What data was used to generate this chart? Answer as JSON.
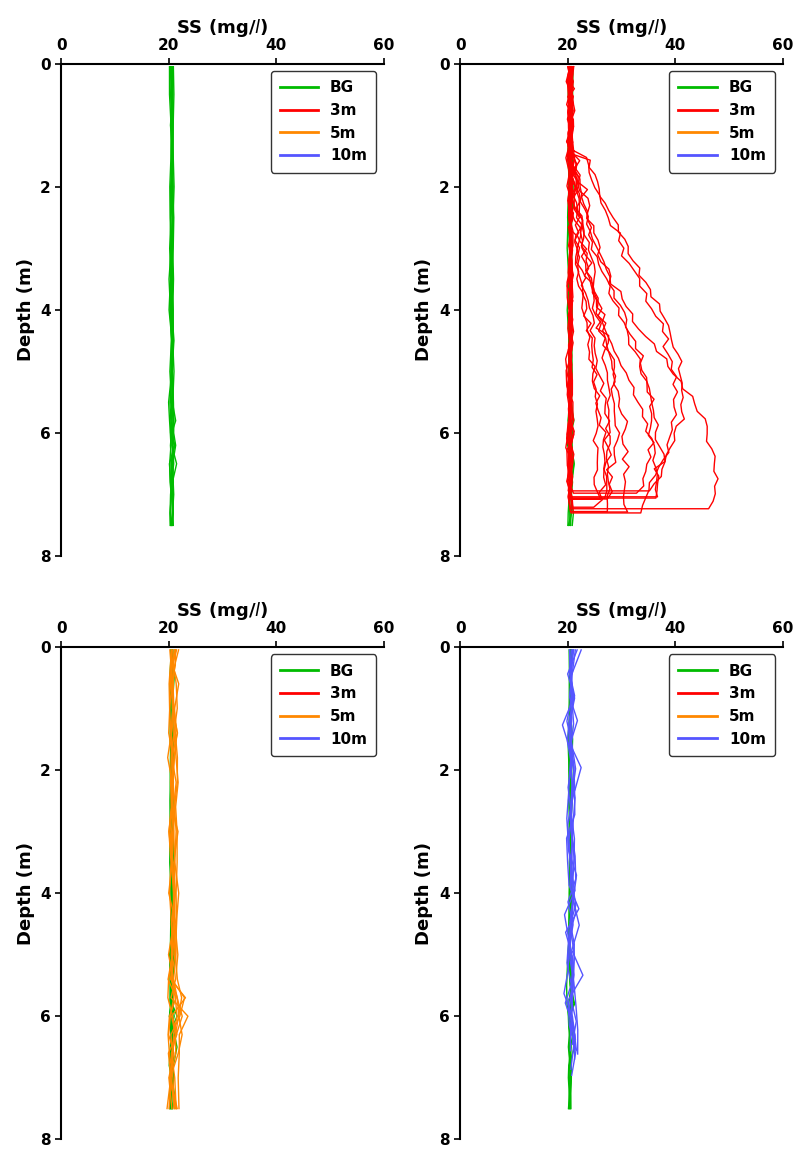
{
  "ylabel": "Depth (m)",
  "xlim": [
    0,
    60
  ],
  "ylim": [
    8,
    0
  ],
  "xticks": [
    0,
    20,
    40,
    60
  ],
  "yticks": [
    0,
    2,
    4,
    6,
    8
  ],
  "legend_labels": [
    "BG",
    "3m",
    "5m",
    "10m"
  ],
  "legend_colors": [
    "#00BB00",
    "#FF0000",
    "#FF8800",
    "#5555FF"
  ],
  "bg_color": "#00BB00",
  "red_color": "#FF0000",
  "orange_color": "#FF8800",
  "blue_color": "#5555FF",
  "line_width": 1.0
}
